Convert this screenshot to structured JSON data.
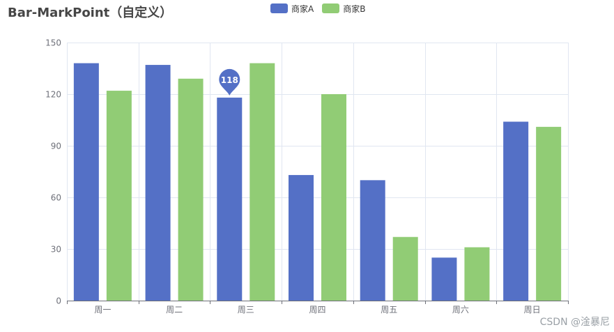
{
  "chart_data": {
    "type": "bar",
    "title": "Bar-MarkPoint（自定义）",
    "categories": [
      "周一",
      "周二",
      "周三",
      "周四",
      "周五",
      "周六",
      "周日"
    ],
    "series": [
      {
        "name": "商家A",
        "color": "#5470c6",
        "values": [
          138,
          137,
          118,
          73,
          70,
          25,
          104
        ]
      },
      {
        "name": "商家B",
        "color": "#91cc75",
        "values": [
          122,
          129,
          138,
          120,
          37,
          31,
          101
        ]
      }
    ],
    "ylim": [
      0,
      150
    ],
    "yticks": [
      0,
      30,
      60,
      90,
      120,
      150
    ],
    "grid": true,
    "legend_position": "top-center",
    "mark_point": {
      "series": "商家A",
      "category": "周三",
      "value": 118,
      "label": "118"
    }
  },
  "watermark": "CSDN @淦暴尼"
}
